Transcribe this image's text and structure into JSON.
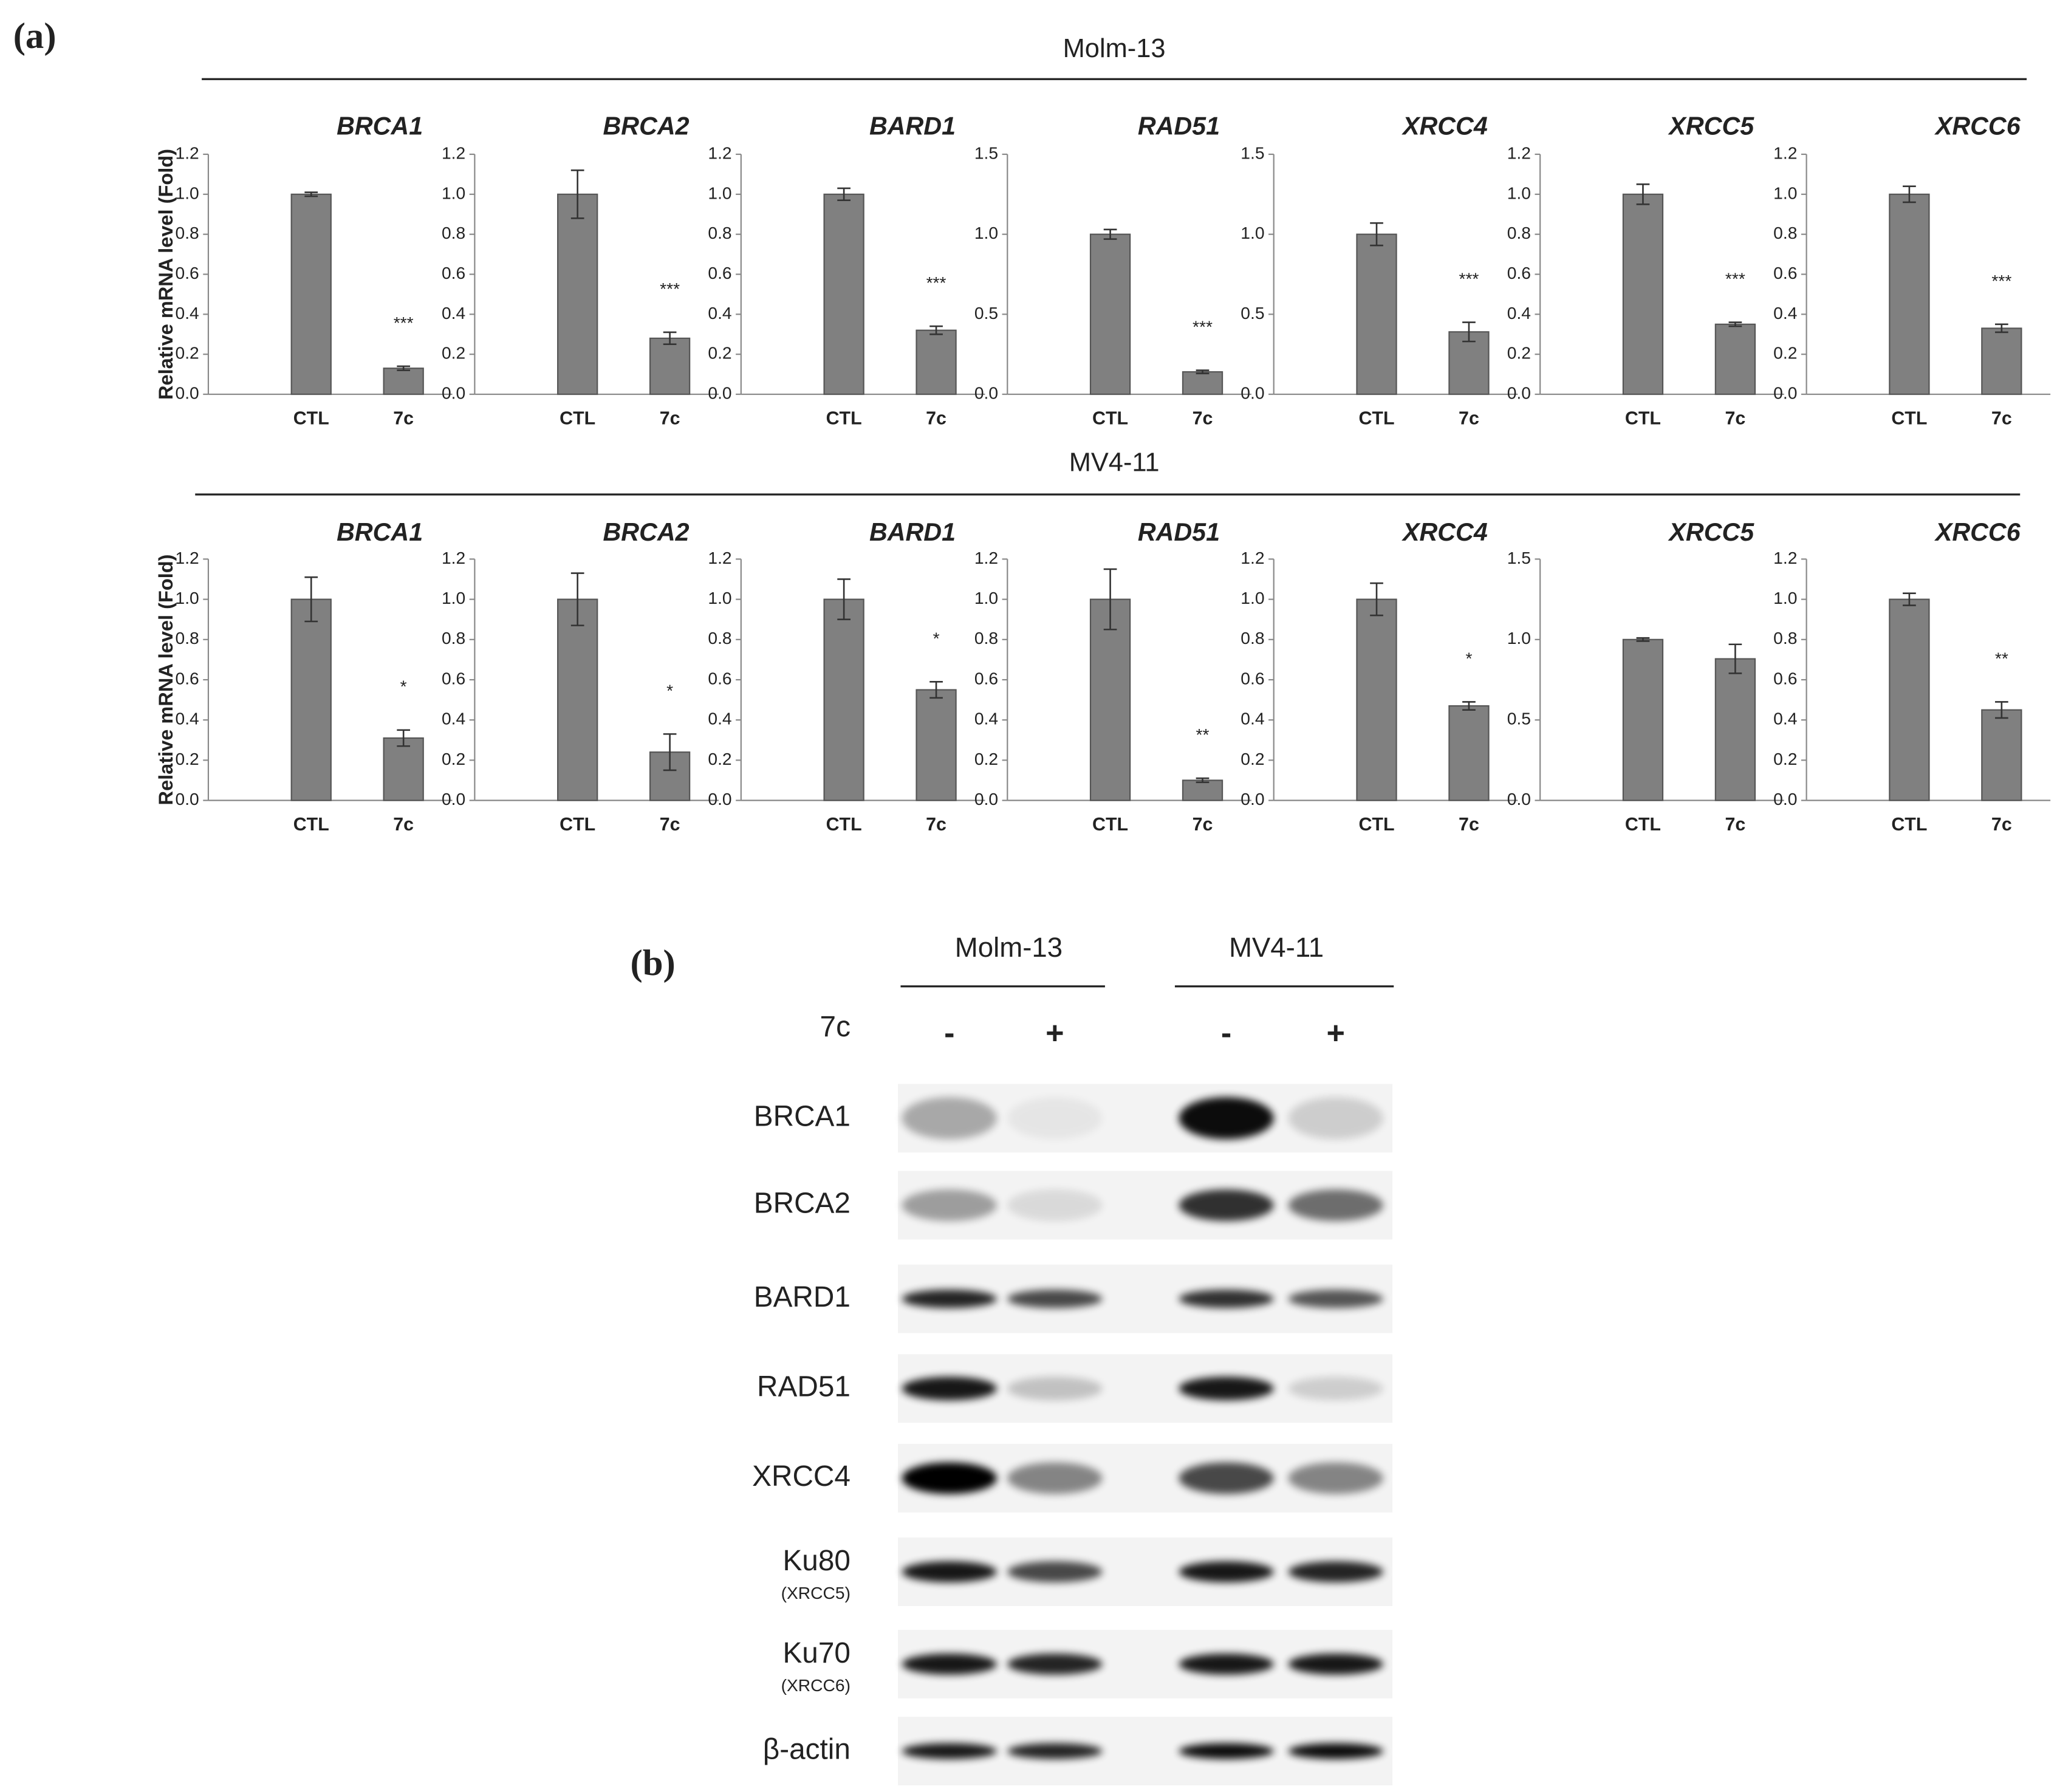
{
  "panel_a": {
    "label": "(a)",
    "groups": [
      "Molm-13",
      "MV4-11"
    ]
  },
  "chart_data": [
    {
      "type": "bar",
      "title": "BRCA1",
      "ylabel": "Relative mRNA level (Fold)",
      "categories": [
        "CTL",
        "7c"
      ],
      "values": [
        1.0,
        0.13
      ],
      "errors": [
        0.01,
        0.01
      ],
      "annotation": "***",
      "color": "#808080",
      "ylim": [
        0,
        1.2
      ],
      "yticks": [
        {
          "value": 0,
          "label": "0.0"
        },
        0.2,
        0.4,
        0.6,
        0.8,
        {
          "value": 1,
          "label": "1.0"
        },
        1.2
      ]
    },
    {
      "type": "bar",
      "title": "BRCA2",
      "categories": [
        "CTL",
        "7c"
      ],
      "values": [
        1.0,
        0.28
      ],
      "errors": [
        0.12,
        0.03
      ],
      "annotation": "***",
      "color": "#808080",
      "ylim": [
        0,
        1.2
      ],
      "yticks": [
        {
          "value": 0,
          "label": "0.0"
        },
        0.2,
        0.4,
        0.6,
        0.8,
        {
          "value": 1,
          "label": "1.0"
        },
        1.2
      ]
    },
    {
      "type": "bar",
      "title": "BARD1",
      "categories": [
        "CTL",
        "7c"
      ],
      "values": [
        1.0,
        0.32
      ],
      "errors": [
        0.03,
        0.02
      ],
      "annotation": "***",
      "color": "#808080",
      "ylim": [
        0,
        1.2
      ],
      "yticks": [
        {
          "value": 0,
          "label": "0.0"
        },
        0.2,
        0.4,
        0.6,
        0.8,
        {
          "value": 1,
          "label": "1.0"
        },
        1.2
      ]
    },
    {
      "type": "bar",
      "title": "RAD51",
      "categories": [
        "CTL",
        "7c"
      ],
      "values": [
        1.0,
        0.14
      ],
      "errors": [
        0.03,
        0.01
      ],
      "annotation": "***",
      "color": "#808080",
      "ylim": [
        0,
        1.5
      ],
      "yticks": [
        {
          "value": 0,
          "label": "0.0"
        },
        0.5,
        {
          "value": 1,
          "label": "1.0"
        },
        1.5
      ]
    },
    {
      "type": "bar",
      "title": "XRCC4",
      "categories": [
        "CTL",
        "7c"
      ],
      "values": [
        1.0,
        0.39
      ],
      "errors": [
        0.07,
        0.06
      ],
      "annotation": "***",
      "color": "#808080",
      "ylim": [
        0,
        1.5
      ],
      "yticks": [
        {
          "value": 0,
          "label": "0.0"
        },
        0.5,
        {
          "value": 1,
          "label": "1.0"
        },
        1.5
      ]
    },
    {
      "type": "bar",
      "title": "XRCC5",
      "categories": [
        "CTL",
        "7c"
      ],
      "values": [
        1.0,
        0.35
      ],
      "errors": [
        0.05,
        0.01
      ],
      "annotation": "***",
      "color": "#808080",
      "ylim": [
        0,
        1.2
      ],
      "yticks": [
        {
          "value": 0,
          "label": "0.0"
        },
        0.2,
        0.4,
        0.6,
        0.8,
        {
          "value": 1,
          "label": "1.0"
        },
        1.2
      ]
    },
    {
      "type": "bar",
      "title": "XRCC6",
      "categories": [
        "CTL",
        "7c"
      ],
      "values": [
        1.0,
        0.33
      ],
      "errors": [
        0.04,
        0.02
      ],
      "annotation": "***",
      "color": "#808080",
      "ylim": [
        0,
        1.2
      ],
      "yticks": [
        {
          "value": 0,
          "label": "0.0"
        },
        0.2,
        0.4,
        0.6,
        0.8,
        {
          "value": 1,
          "label": "1.0"
        },
        1.2
      ]
    },
    {
      "type": "bar",
      "title": "BRCA1",
      "ylabel": "Relative mRNA level (Fold)",
      "categories": [
        "CTL",
        "7c"
      ],
      "values": [
        1.0,
        0.31
      ],
      "errors": [
        0.11,
        0.04
      ],
      "annotation": "*",
      "color": "#808080",
      "ylim": [
        0,
        1.2
      ],
      "yticks": [
        {
          "value": 0,
          "label": "0.0"
        },
        0.2,
        0.4,
        0.6,
        0.8,
        {
          "value": 1,
          "label": "1.0"
        },
        1.2
      ]
    },
    {
      "type": "bar",
      "title": "BRCA2",
      "categories": [
        "CTL",
        "7c"
      ],
      "values": [
        1.0,
        0.24
      ],
      "errors": [
        0.13,
        0.09
      ],
      "annotation": "*",
      "color": "#808080",
      "ylim": [
        0,
        1.2
      ],
      "yticks": [
        {
          "value": 0,
          "label": "0.0"
        },
        0.2,
        0.4,
        0.6,
        0.8,
        {
          "value": 1,
          "label": "1.0"
        },
        1.2
      ]
    },
    {
      "type": "bar",
      "title": "BARD1",
      "categories": [
        "CTL",
        "7c"
      ],
      "values": [
        1.0,
        0.55
      ],
      "errors": [
        0.1,
        0.04
      ],
      "annotation": "*",
      "color": "#808080",
      "ylim": [
        0,
        1.2
      ],
      "yticks": [
        {
          "value": 0,
          "label": "0.0"
        },
        0.2,
        0.4,
        0.6,
        0.8,
        {
          "value": 1,
          "label": "1.0"
        },
        1.2
      ]
    },
    {
      "type": "bar",
      "title": "RAD51",
      "categories": [
        "CTL",
        "7c"
      ],
      "values": [
        1.0,
        0.1
      ],
      "errors": [
        0.15,
        0.01
      ],
      "annotation": "**",
      "color": "#808080",
      "ylim": [
        0,
        1.2
      ],
      "yticks": [
        {
          "value": 0,
          "label": "0.0"
        },
        0.2,
        0.4,
        0.6,
        0.8,
        {
          "value": 1,
          "label": "1.0"
        },
        1.2
      ]
    },
    {
      "type": "bar",
      "title": "XRCC4",
      "categories": [
        "CTL",
        "7c"
      ],
      "values": [
        1.0,
        0.47
      ],
      "errors": [
        0.08,
        0.02
      ],
      "annotation": "*",
      "color": "#808080",
      "ylim": [
        0,
        1.2
      ],
      "yticks": [
        {
          "value": 0,
          "label": "0.0"
        },
        0.2,
        0.4,
        0.6,
        0.8,
        {
          "value": 1,
          "label": "1.0"
        },
        1.2
      ]
    },
    {
      "type": "bar",
      "title": "XRCC5",
      "categories": [
        "CTL",
        "7c"
      ],
      "values": [
        1.0,
        0.88
      ],
      "errors": [
        0.01,
        0.09
      ],
      "color": "#808080",
      "ylim": [
        0,
        1.5
      ],
      "yticks": [
        {
          "value": 0,
          "label": "0.0"
        },
        0.5,
        {
          "value": 1,
          "label": "1.0"
        },
        1.5
      ]
    },
    {
      "type": "bar",
      "title": "XRCC6",
      "categories": [
        "CTL",
        "7c"
      ],
      "values": [
        1.0,
        0.45
      ],
      "errors": [
        0.03,
        0.04
      ],
      "annotation": "**",
      "color": "#808080",
      "ylim": [
        0,
        1.2
      ],
      "yticks": [
        {
          "value": 0,
          "label": "0.0"
        },
        0.2,
        0.4,
        0.6,
        0.8,
        {
          "value": 1,
          "label": "1.0"
        },
        1.2
      ]
    }
  ],
  "panel_b": {
    "label": "(b)",
    "cell_lines": [
      "Molm-13",
      "MV4-11"
    ],
    "treatment_label": "7c",
    "lanes": [
      "-",
      "+",
      "-",
      "+"
    ],
    "rows": [
      {
        "label": "BRCA1"
      },
      {
        "label": "BRCA2"
      },
      {
        "label": "BARD1"
      },
      {
        "label": "RAD51"
      },
      {
        "label": "XRCC4"
      },
      {
        "label": "Ku80",
        "sublabel": "(XRCC5)"
      },
      {
        "label": "Ku70",
        "sublabel": "(XRCC6)"
      },
      {
        "label": "β-actin"
      }
    ]
  }
}
